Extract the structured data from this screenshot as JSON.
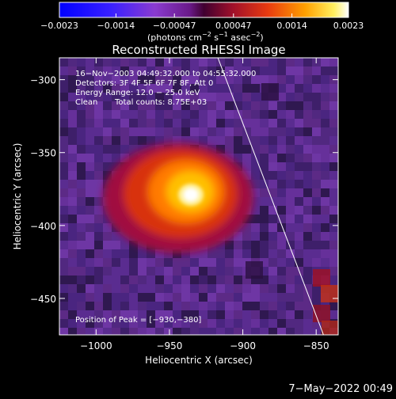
{
  "chart_data": {
    "type": "heatmap",
    "title": "Reconstructed RHESSI Image",
    "xlabel": "Heliocentric X (arcsec)",
    "ylabel": "Heliocentric Y (arcsec)",
    "xlim": [
      -1025,
      -835
    ],
    "ylim": [
      -475,
      -285
    ],
    "x_ticks": [
      -1000,
      -950,
      -900,
      -850
    ],
    "y_ticks": [
      -300,
      -350,
      -400,
      -450
    ],
    "x_tick_labels": [
      "−1000",
      "−950",
      "−900",
      "−850"
    ],
    "y_tick_labels": [
      "−300",
      "−350",
      "−400",
      "−450"
    ],
    "colorbar": {
      "range": [
        -0.0023,
        0.0023
      ],
      "ticks": [
        -0.0023,
        -0.0014,
        -0.00047,
        0.00047,
        0.0014,
        0.0023
      ],
      "tick_labels": [
        "−0.0023",
        "−0.0014",
        "−0.00047",
        "0.00047",
        "0.0014",
        "0.0023"
      ],
      "units_label_main": "(photons cm",
      "units_label_sup1": "−2",
      "units_label_mid1": " s",
      "units_label_sup2": "−1",
      "units_label_mid2": " asec",
      "units_label_sup3": "−2",
      "units_label_end": ")"
    },
    "annotations": {
      "time_range": "16−Nov−2003 04:49:32.000 to 04:55:32.000",
      "detectors": "Detectors: 3F 4F 5F 6F 7F 8F, Att 0",
      "energy_range": "Energy Range: 12.0 − 25.0 keV",
      "clean_label": "Clean",
      "total_counts": "Total counts: 8.75E+03",
      "peak_position": "Position of Peak = [−930,−380]"
    },
    "peak": [
      -930,
      -380
    ],
    "limb_line": [
      [
        -917,
        -285
      ],
      [
        -845,
        -475
      ]
    ],
    "footer_timestamp": "7−May−2022 00:49"
  },
  "colors": {
    "background": "#000000",
    "colormap": [
      "#0000ff",
      "#6a3cf0",
      "#7a2fb0",
      "#6a1a9a",
      "#c0104a",
      "#e03010",
      "#ff8a00",
      "#ffd000",
      "#ffffff"
    ]
  }
}
